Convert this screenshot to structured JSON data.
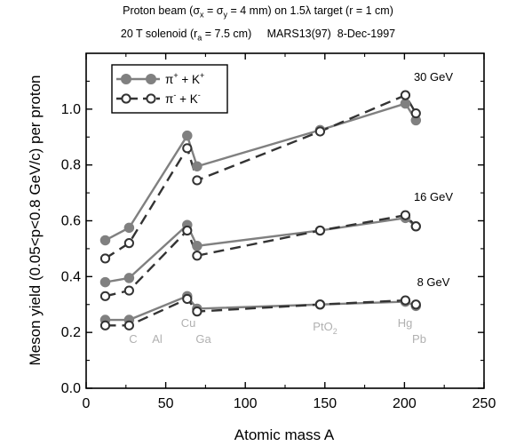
{
  "chart_data": {
    "type": "line",
    "title": "Proton beam (σx = σy = 4 mm) on 1.5λ target (r = 1 cm)",
    "subtitle": "20 T solenoid (ra = 7.5 cm)     MARS13(97)  8-Dec-1997",
    "title_parts": {
      "pre": "Proton beam (σ",
      "s1": "x",
      "mid": " = σ",
      "s2": "y",
      "post": " = 4 mm) on 1.5λ target (r = 1 cm)"
    },
    "subtitle_parts": {
      "pre": "20 T solenoid (r",
      "sub": "a",
      "post": " = 7.5 cm)     MARS13(97)  8-Dec-1997"
    },
    "xlabel": "Atomic mass A",
    "ylabel": "Meson yield (0.05<p<0.8 GeV/c) per proton",
    "xlim": [
      0,
      250
    ],
    "ylim": [
      0.0,
      1.2
    ],
    "xticks": [
      "0",
      "50",
      "100",
      "150",
      "200",
      "250"
    ],
    "yticks": [
      "0.0",
      "0.2",
      "0.4",
      "0.6",
      "0.8",
      "1.0"
    ],
    "grid": false,
    "legend_position": "top-left",
    "legend": {
      "a": {
        "pre": "π",
        "sup1": "+",
        "mid": " + K",
        "sup2": "+"
      },
      "b": {
        "pre": "π",
        "sup1": "-",
        "mid": " + K",
        "sup2": "-"
      }
    },
    "colors": {
      "series": "#808080",
      "target_label": "#b0b0b0"
    },
    "targets": [
      {
        "label": "C",
        "A": 12
      },
      {
        "label": "Al",
        "A": 27
      },
      {
        "label": "Cu",
        "A": 63.5
      },
      {
        "label": "Ga",
        "A": 69.7
      },
      {
        "label": "PtO2",
        "A": 147
      },
      {
        "label": "Hg",
        "A": 200.6
      },
      {
        "label": "Pb",
        "A": 207.2
      }
    ],
    "target_labels": {
      "C": "C",
      "Al": "Al",
      "Cu": "Cu",
      "Ga": "Ga",
      "PtO_base": "PtO",
      "PtO_sub": "2",
      "Hg": "Hg",
      "Pb": "Pb"
    },
    "energy_groups": [
      {
        "energy": "30 GeV",
        "plus": [
          [
            12,
            0.53
          ],
          [
            27,
            0.575
          ],
          [
            63.5,
            0.905
          ],
          [
            69.7,
            0.795
          ],
          [
            147,
            0.925
          ],
          [
            200.6,
            1.02
          ],
          [
            207.2,
            0.96
          ]
        ],
        "minus": [
          [
            12,
            0.465
          ],
          [
            27,
            0.52
          ],
          [
            63.5,
            0.86
          ],
          [
            69.7,
            0.745
          ],
          [
            147,
            0.92
          ],
          [
            200.6,
            1.05
          ],
          [
            207.2,
            0.985
          ]
        ]
      },
      {
        "energy": "16 GeV",
        "plus": [
          [
            12,
            0.38
          ],
          [
            27,
            0.395
          ],
          [
            63.5,
            0.585
          ],
          [
            69.7,
            0.51
          ],
          [
            147,
            0.565
          ],
          [
            200.6,
            0.61
          ],
          [
            207.2,
            0.58
          ]
        ],
        "minus": [
          [
            12,
            0.33
          ],
          [
            27,
            0.35
          ],
          [
            63.5,
            0.565
          ],
          [
            69.7,
            0.475
          ],
          [
            147,
            0.565
          ],
          [
            200.6,
            0.62
          ],
          [
            207.2,
            0.58
          ]
        ]
      },
      {
        "energy": "8 GeV",
        "plus": [
          [
            12,
            0.245
          ],
          [
            27,
            0.245
          ],
          [
            63.5,
            0.33
          ],
          [
            69.7,
            0.285
          ],
          [
            147,
            0.3
          ],
          [
            200.6,
            0.31
          ],
          [
            207.2,
            0.295
          ]
        ],
        "minus": [
          [
            12,
            0.225
          ],
          [
            27,
            0.225
          ],
          [
            63.5,
            0.32
          ],
          [
            69.7,
            0.275
          ],
          [
            147,
            0.3
          ],
          [
            200.6,
            0.315
          ],
          [
            207.2,
            0.3
          ]
        ]
      }
    ]
  }
}
